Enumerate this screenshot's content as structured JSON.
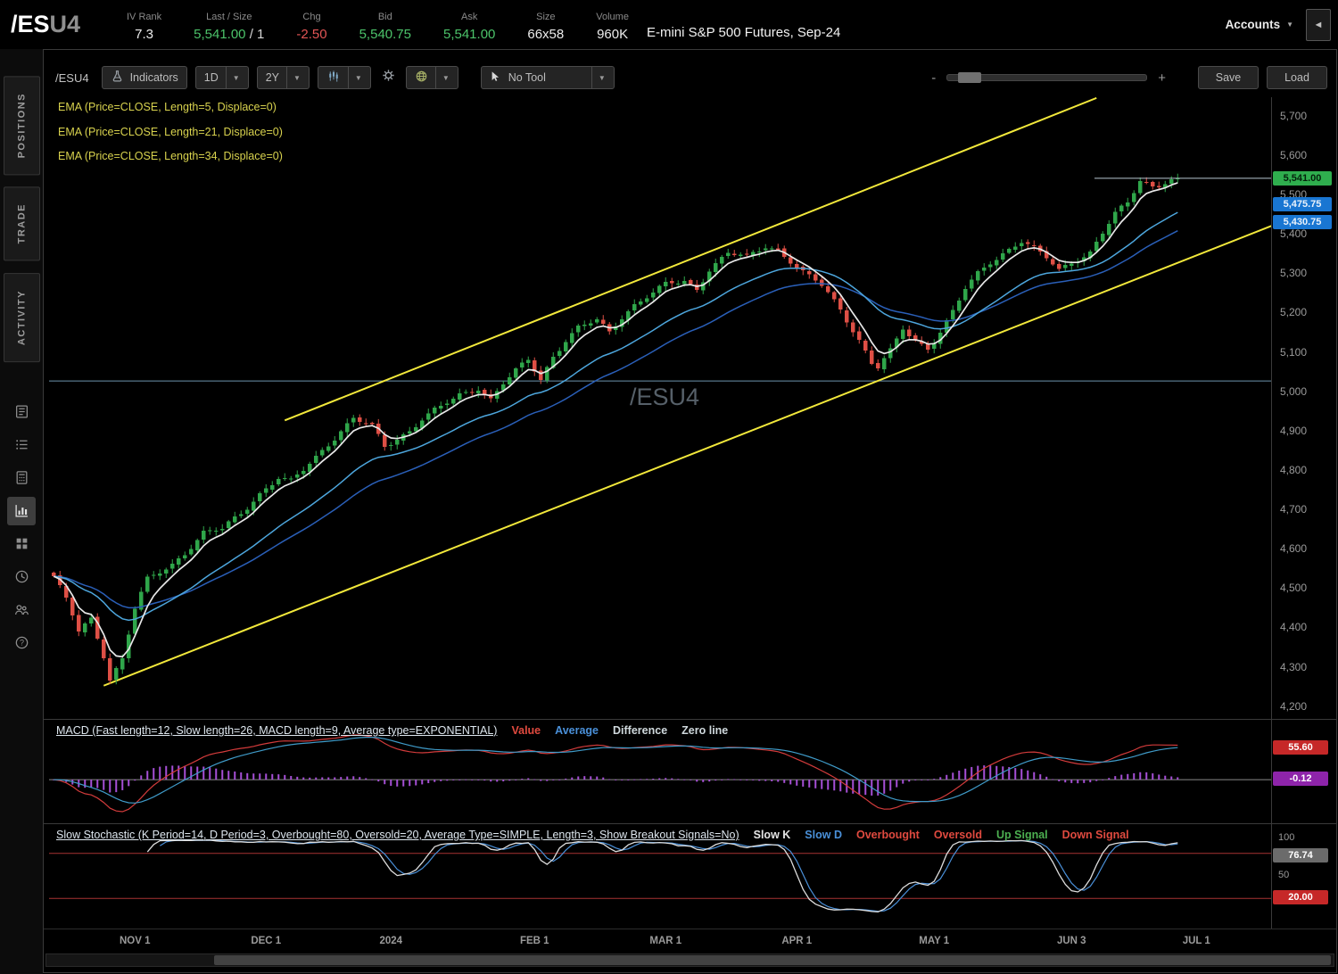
{
  "header": {
    "symbol": "/ES",
    "symbol_suffix": "U4",
    "stats": [
      {
        "label": "IV Rank",
        "value": "7.3",
        "tone": "neutral"
      },
      {
        "label": "Last / Size",
        "value": "5,541.00",
        "suffix": " / 1",
        "tone": "green"
      },
      {
        "label": "Chg",
        "value": "-2.50",
        "tone": "red"
      },
      {
        "label": "Bid",
        "value": "5,540.75",
        "tone": "green"
      },
      {
        "label": "Ask",
        "value": "5,541.00",
        "tone": "green"
      },
      {
        "label": "Size",
        "value": "66x58",
        "tone": "neutral"
      },
      {
        "label": "Volume",
        "value": "960K",
        "tone": "neutral"
      }
    ],
    "description": "E-mini S&P 500 Futures, Sep-24",
    "accounts_label": "Accounts"
  },
  "sidebar": {
    "tabs": [
      {
        "label": "POSITIONS"
      },
      {
        "label": "TRADE"
      },
      {
        "label": "ACTIVITY"
      }
    ],
    "icons": [
      {
        "name": "news-icon",
        "active": false
      },
      {
        "name": "watchlist-icon",
        "active": false
      },
      {
        "name": "trade-ticket-icon",
        "active": false
      },
      {
        "name": "chart-icon",
        "active": true
      },
      {
        "name": "apps-grid-icon",
        "active": false
      },
      {
        "name": "history-clock-icon",
        "active": false
      },
      {
        "name": "community-icon",
        "active": false
      },
      {
        "name": "help-icon",
        "active": false
      }
    ]
  },
  "toolbar": {
    "symbol": "/ESU4",
    "indicators_label": "Indicators",
    "aggregation": "1D",
    "range": "2Y",
    "tool_label": "No Tool",
    "zoom_minus": "-",
    "zoom_plus": "+",
    "save_label": "Save",
    "load_label": "Load",
    "icons": [
      "flask-icon",
      "chevron-down-icon",
      "candlestick-chart-icon",
      "gear-icon",
      "globe-icon",
      "cursor-icon"
    ]
  },
  "studies": {
    "price_overlays": [
      "EMA (Price=CLOSE, Length=5, Displace=0)",
      "EMA (Price=CLOSE, Length=21, Displace=0)",
      "EMA (Price=CLOSE, Length=34, Displace=0)"
    ],
    "macd": {
      "title": "MACD (Fast length=12, Slow length=26, MACD length=9, Average type=EXPONENTIAL)",
      "legend": [
        {
          "label": "Value",
          "color": "#e04a3f"
        },
        {
          "label": "Average",
          "color": "#4a90d9"
        },
        {
          "label": "Difference",
          "color": "#cfd8dc"
        },
        {
          "label": "Zero line",
          "color": "#cfd8dc"
        }
      ],
      "params": {
        "fast": 12,
        "slow": 26,
        "length": 9
      },
      "colors": {
        "value": "#d23b3b",
        "average": "#3f9bc9",
        "difference": "#a64fd6",
        "zero": "#8a8a8a"
      },
      "bubbles": [
        {
          "text": "55.60",
          "value": 55.6,
          "bg": "#c62828",
          "fg": "#ffffff"
        },
        {
          "text": "-0.12",
          "value": -0.12,
          "bg": "#8e24aa",
          "fg": "#ffffff"
        }
      ]
    },
    "stoch": {
      "title": "Slow Stochastic (K Period=14, D Period=3, Overbought=80, Oversold=20, Average Type=SIMPLE, Length=3, Show Breakout Signals=No)",
      "legend": [
        {
          "label": "Slow K",
          "color": "#e6e6e6"
        },
        {
          "label": "Slow D",
          "color": "#4a90d9"
        },
        {
          "label": "Overbought",
          "color": "#e04a3f"
        },
        {
          "label": "Oversold",
          "color": "#e04a3f"
        },
        {
          "label": "Up Signal",
          "color": "#4caf50"
        },
        {
          "label": "Down Signal",
          "color": "#e04a3f"
        }
      ],
      "overbought": 80,
      "oversold": 20,
      "axis_labels": [
        {
          "text": "100",
          "value": 100
        },
        {
          "text": "50",
          "value": 50
        }
      ],
      "colors": {
        "k": "#dcdcdc",
        "d": "#4a90d9",
        "band": "#a83232"
      },
      "bubbles": [
        {
          "text": "76.74",
          "value": 76.74,
          "bg": "#6b6b6b",
          "fg": "#ffffff"
        },
        {
          "text": "20.00",
          "value": 20,
          "bg": "#c62828",
          "fg": "#ffffff"
        }
      ]
    }
  },
  "chart_data": {
    "type": "candlestick",
    "symbol": "/ESU4",
    "watermark": "/ESU4",
    "days": 181,
    "last_close": 5541,
    "y_ticks": [
      "5,700",
      "5,600",
      "5,500",
      "5,400",
      "5,300",
      "5,200",
      "5,100",
      "5,000",
      "4,900",
      "4,800",
      "4,700",
      "4,600",
      "4,500",
      "4,400",
      "4,300",
      "4,200"
    ],
    "x_labels": [
      {
        "label": "NOV 1",
        "day": 13
      },
      {
        "label": "DEC 1",
        "day": 34
      },
      {
        "label": "2024",
        "day": 54
      },
      {
        "label": "FEB 1",
        "day": 77
      },
      {
        "label": "MAR 1",
        "day": 98
      },
      {
        "label": "APR 1",
        "day": 119
      },
      {
        "label": "MAY 1",
        "day": 141
      },
      {
        "label": "JUN 3",
        "day": 163
      },
      {
        "label": "JUL 1",
        "day": 183
      }
    ],
    "close_anchors": [
      [
        0,
        4530
      ],
      [
        2,
        4470
      ],
      [
        4,
        4390
      ],
      [
        6,
        4420
      ],
      [
        8,
        4330
      ],
      [
        9,
        4270
      ],
      [
        11,
        4320
      ],
      [
        13,
        4450
      ],
      [
        15,
        4520
      ],
      [
        17,
        4540
      ],
      [
        19,
        4560
      ],
      [
        21,
        4590
      ],
      [
        24,
        4640
      ],
      [
        27,
        4650
      ],
      [
        30,
        4690
      ],
      [
        33,
        4740
      ],
      [
        36,
        4780
      ],
      [
        38,
        4770
      ],
      [
        40,
        4800
      ],
      [
        43,
        4850
      ],
      [
        46,
        4900
      ],
      [
        48,
        4930
      ],
      [
        51,
        4910
      ],
      [
        53,
        4860
      ],
      [
        55,
        4880
      ],
      [
        57,
        4900
      ],
      [
        59,
        4930
      ],
      [
        62,
        4960
      ],
      [
        65,
        4990
      ],
      [
        68,
        5010
      ],
      [
        70,
        4980
      ],
      [
        72,
        5020
      ],
      [
        74,
        5050
      ],
      [
        76,
        5080
      ],
      [
        78,
        5030
      ],
      [
        80,
        5090
      ],
      [
        82,
        5130
      ],
      [
        84,
        5160
      ],
      [
        87,
        5180
      ],
      [
        89,
        5150
      ],
      [
        91,
        5190
      ],
      [
        93,
        5220
      ],
      [
        95,
        5240
      ],
      [
        98,
        5270
      ],
      [
        101,
        5280
      ],
      [
        103,
        5260
      ],
      [
        105,
        5310
      ],
      [
        108,
        5350
      ],
      [
        111,
        5340
      ],
      [
        114,
        5370
      ],
      [
        116,
        5360
      ],
      [
        118,
        5330
      ],
      [
        120,
        5300
      ],
      [
        123,
        5270
      ],
      [
        126,
        5210
      ],
      [
        129,
        5130
      ],
      [
        131,
        5070
      ],
      [
        132,
        5060
      ],
      [
        134,
        5100
      ],
      [
        136,
        5160
      ],
      [
        138,
        5130
      ],
      [
        140,
        5110
      ],
      [
        142,
        5150
      ],
      [
        144,
        5200
      ],
      [
        146,
        5260
      ],
      [
        148,
        5300
      ],
      [
        150,
        5330
      ],
      [
        152,
        5350
      ],
      [
        155,
        5380
      ],
      [
        157,
        5360
      ],
      [
        159,
        5340
      ],
      [
        161,
        5310
      ],
      [
        163,
        5330
      ],
      [
        166,
        5350
      ],
      [
        168,
        5400
      ],
      [
        170,
        5450
      ],
      [
        172,
        5480
      ],
      [
        174,
        5540
      ],
      [
        176,
        5520
      ],
      [
        178,
        5530
      ],
      [
        180,
        5541
      ]
    ],
    "emas": [
      {
        "length": 5,
        "color": "#e8e8e8"
      },
      {
        "length": 21,
        "color": "#4da6dd"
      },
      {
        "length": 34,
        "color": "#2a5fb8"
      }
    ],
    "trend_channel": [
      {
        "d1": 37,
        "p1": 4926,
        "d2": 167,
        "p2": 5745,
        "color": "#f2e83b"
      },
      {
        "d1": 8,
        "p1": 4252,
        "d2": 195,
        "p2": 5420,
        "color": "#f2e83b"
      }
    ],
    "support_line": 5026,
    "last_price_line": 5541,
    "price_bubbles": [
      {
        "text": "5,541.00",
        "price": 5541,
        "bg": "#2fae4e",
        "fg": "#04220c"
      },
      {
        "text": "5,475.75",
        "price": 5475.75,
        "bg": "#1976d2",
        "fg": "#eaf2fb"
      },
      {
        "text": "5,430.75",
        "price": 5430.75,
        "bg": "#1976d2",
        "fg": "#eaf2fb"
      }
    ],
    "candle_up": "#2fa64a",
    "candle_down": "#de4f45",
    "support_line_color": "#6d93ad",
    "last_price_line_color": "#b7c6cf",
    "watermark_color": "#566069"
  }
}
